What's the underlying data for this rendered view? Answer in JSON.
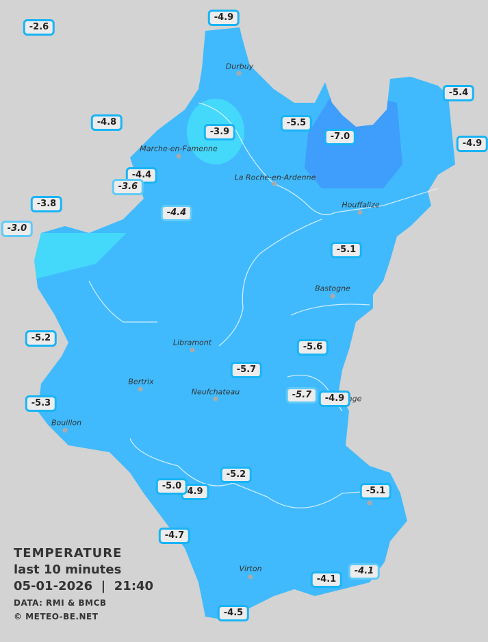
{
  "legend": {
    "title": "TEMPERATURE",
    "period": "last 10 minutes",
    "datetime": "05-01-2026  |  21:40",
    "source": "DATA: RMI & BMCB",
    "copyright": "© METEO-BE.NET"
  },
  "colors": {
    "background": "#d3d3d3",
    "base": "#40bafc",
    "warm": "#44d8fb",
    "cold": "#3f9dfb",
    "label_border": "#19b4f5"
  },
  "unit": "°C",
  "readings": [
    {
      "value": "-2.6"
    },
    {
      "value": "-4.9"
    },
    {
      "value": "-4.8"
    },
    {
      "value": "-3.9"
    },
    {
      "value": "-5.5"
    },
    {
      "value": "-7.0"
    },
    {
      "value": "-5.4"
    },
    {
      "value": "-4.9"
    },
    {
      "value": "-4.4"
    },
    {
      "value": "-3.6",
      "italic": true
    },
    {
      "value": "-3.8"
    },
    {
      "value": "-3.0",
      "italic": true
    },
    {
      "value": "-4.4",
      "italic": true
    },
    {
      "value": "-5.1"
    },
    {
      "value": "-5.2"
    },
    {
      "value": "-5.6"
    },
    {
      "value": "-5.7"
    },
    {
      "value": "-5.7",
      "italic": true
    },
    {
      "value": "-4.9"
    },
    {
      "value": "-5.3"
    },
    {
      "value": "-5.2"
    },
    {
      "value": "4.9"
    },
    {
      "value": "-5.0"
    },
    {
      "value": "-5.1"
    },
    {
      "value": "-4.7"
    },
    {
      "value": "-4.1"
    },
    {
      "value": "-4.1",
      "italic": true
    },
    {
      "value": "-4.5"
    }
  ],
  "cities": [
    {
      "name": "Durbuy"
    },
    {
      "name": "Marche-en-Famenne"
    },
    {
      "name": "La Roche-en-Ardenne"
    },
    {
      "name": "Houffalize"
    },
    {
      "name": "Bastogne"
    },
    {
      "name": "Libramont"
    },
    {
      "name": "Bertrix"
    },
    {
      "name": "Neufchateau"
    },
    {
      "name": "nge"
    },
    {
      "name": "Bouillon"
    },
    {
      "name": "Virton"
    },
    {
      "name": ""
    }
  ]
}
